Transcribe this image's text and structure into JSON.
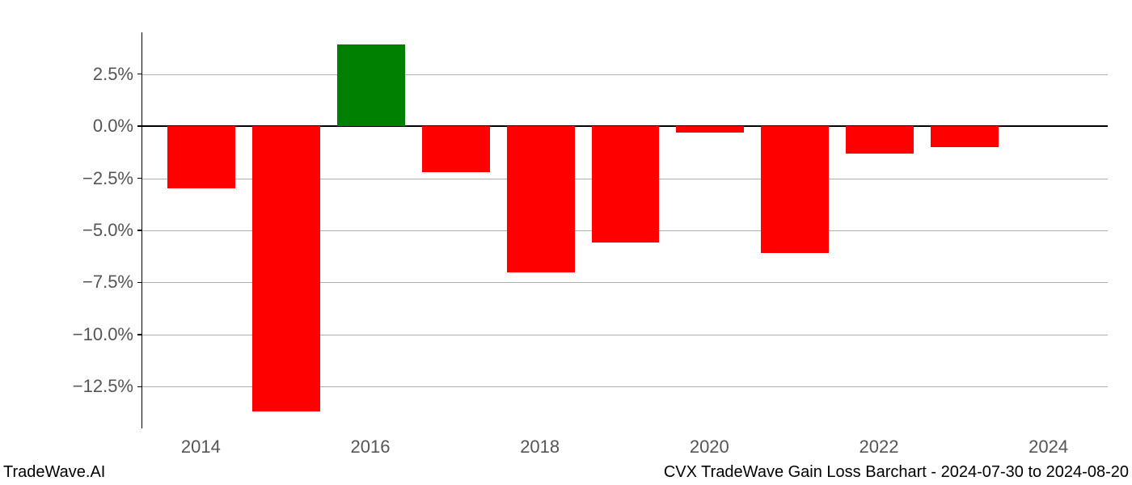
{
  "chart": {
    "type": "bar",
    "years": [
      2014,
      2015,
      2016,
      2017,
      2018,
      2019,
      2020,
      2021,
      2022,
      2023
    ],
    "values": [
      -3.0,
      -13.7,
      3.9,
      -2.2,
      -7.0,
      -5.6,
      -0.3,
      -6.1,
      -1.3,
      -1.0
    ],
    "bar_colors": [
      "#ff0000",
      "#ff0000",
      "#008000",
      "#ff0000",
      "#ff0000",
      "#ff0000",
      "#ff0000",
      "#ff0000",
      "#ff0000",
      "#ff0000"
    ],
    "y_ticks": [
      -12.5,
      -10.0,
      -7.5,
      -5.0,
      -2.5,
      0.0,
      2.5
    ],
    "y_tick_labels": [
      "−12.5%",
      "−10.0%",
      "−7.5%",
      "−5.0%",
      "−2.5%",
      "0.0%",
      "2.5%"
    ],
    "x_ticks": [
      2014,
      2016,
      2018,
      2020,
      2022,
      2024
    ],
    "x_tick_labels": [
      "2014",
      "2016",
      "2018",
      "2020",
      "2022",
      "2024"
    ],
    "y_min": -14.5,
    "y_max": 4.5,
    "x_min": 2013.3,
    "x_max": 2024.7,
    "bar_width_years": 0.8,
    "background_color": "#ffffff",
    "grid_color": "#b0b0b0",
    "axis_color": "#000000",
    "tick_label_color": "#555555",
    "tick_label_fontsize": 22,
    "footer_fontsize": 20
  },
  "footer": {
    "left": "TradeWave.AI",
    "right": "CVX TradeWave Gain Loss Barchart - 2024-07-30 to 2024-08-20"
  }
}
